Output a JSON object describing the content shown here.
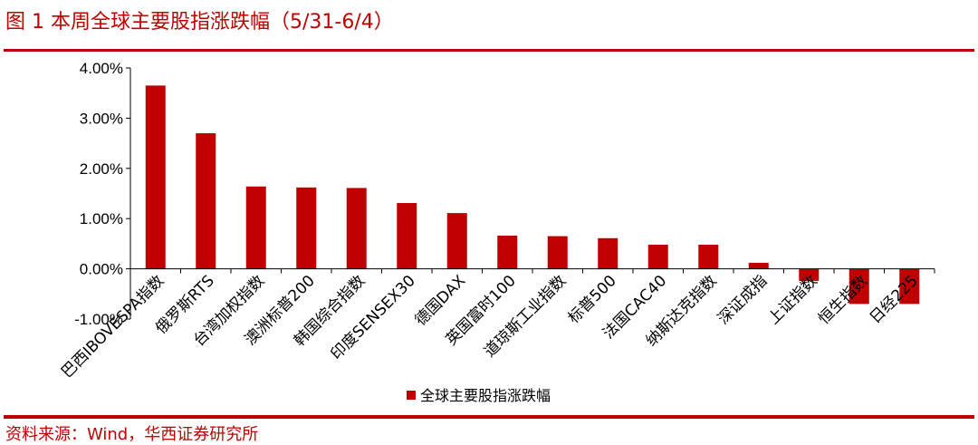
{
  "header": {
    "figure_title": "图 1  本周全球主要股指涨跌幅（5/31-6/4）"
  },
  "footer": {
    "source": "资料来源：Wind，华西证券研究所"
  },
  "colors": {
    "accent": "#c00000",
    "bar": "#c00000"
  },
  "chart_data": {
    "type": "bar",
    "categories": [
      "巴西IBOVESPA指数",
      "俄罗斯RTS",
      "台湾加权指数",
      "澳洲标普200",
      "韩国综合指数",
      "印度SENSEX30",
      "德国DAX",
      "英国富时100",
      "道琼斯工业指数",
      "标普500",
      "法国CAC40",
      "纳斯达克指数",
      "深证成指",
      "上证指数",
      "恒生指数",
      "日经225"
    ],
    "series": [
      {
        "name": "全球主要股指涨跌幅",
        "values": [
          3.65,
          2.7,
          1.64,
          1.62,
          1.61,
          1.31,
          1.11,
          0.66,
          0.65,
          0.61,
          0.48,
          0.48,
          0.12,
          -0.24,
          -0.7,
          -0.7
        ]
      }
    ],
    "ylim": [
      -1.0,
      4.0
    ],
    "yticks": [
      4.0,
      3.0,
      2.0,
      1.0,
      0.0,
      -1.0
    ],
    "ytick_labels": [
      "4.00%",
      "3.00%",
      "2.00%",
      "1.00%",
      "0.00%",
      "-1.00%"
    ],
    "title": "",
    "xlabel": "",
    "ylabel": "",
    "grid": false,
    "legend_position": "bottom"
  }
}
